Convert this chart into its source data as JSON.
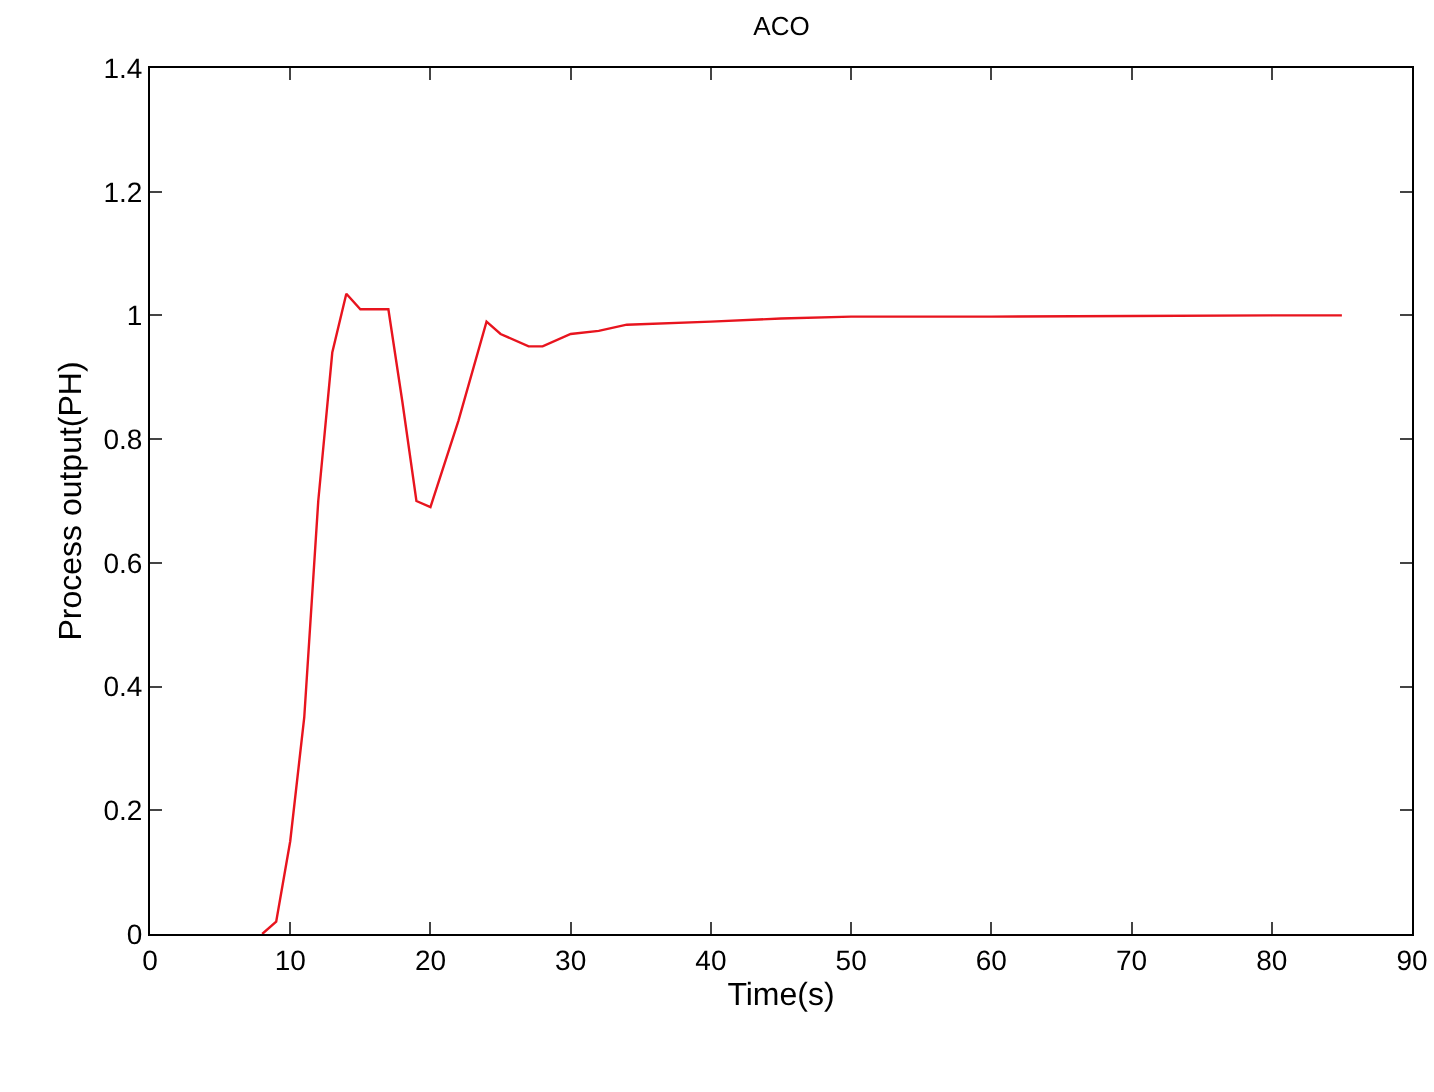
{
  "chart_data": {
    "type": "line",
    "title": "ACO",
    "xlabel": "Time(s)",
    "ylabel": "Process output(PH)",
    "xlim": [
      0,
      90
    ],
    "xticks": [
      0,
      10,
      20,
      30,
      40,
      50,
      60,
      70,
      80,
      90
    ],
    "ylim": [
      0,
      1.4
    ],
    "yticks": [
      0,
      0.2,
      0.4,
      0.6,
      0.8,
      1,
      1.2,
      1.4
    ],
    "series": [
      {
        "color": "#e8141e",
        "x": [
          8,
          9,
          10,
          11,
          12,
          13,
          14,
          15,
          17,
          18,
          19,
          20,
          22,
          24,
          25,
          27,
          28,
          30,
          32,
          34,
          40,
          45,
          50,
          60,
          70,
          80,
          85
        ],
        "values": [
          0,
          0.02,
          0.15,
          0.35,
          0.7,
          0.94,
          1.035,
          1.01,
          1.01,
          0.86,
          0.7,
          0.69,
          0.83,
          0.99,
          0.97,
          0.95,
          0.95,
          0.97,
          0.975,
          0.985,
          0.99,
          0.995,
          0.998,
          0.998,
          0.999,
          1,
          1
        ]
      }
    ]
  }
}
